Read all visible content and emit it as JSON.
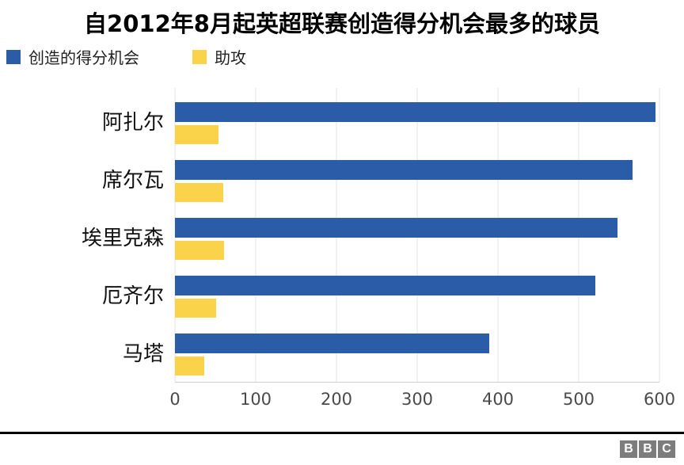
{
  "chart_data": {
    "type": "bar",
    "orientation": "horizontal",
    "title": "自2012年8月起英超联赛创造得分机会最多的球员",
    "categories": [
      "阿扎尔",
      "席尔瓦",
      "埃里克森",
      "厄齐尔",
      "马塔"
    ],
    "series": [
      {
        "name": "创造的得分机会",
        "color": "#2a5ca8",
        "values": [
          595,
          567,
          548,
          521,
          389
        ]
      },
      {
        "name": "助攻",
        "color": "#fbd34b",
        "values": [
          54,
          60,
          61,
          51,
          36
        ]
      }
    ],
    "xlabel": "",
    "ylabel": "",
    "xlim": [
      0,
      600
    ],
    "x_ticks": [
      0,
      100,
      200,
      300,
      400,
      500,
      600
    ],
    "grid": true,
    "legend_position": "top-left"
  },
  "footer": {
    "logo_blocks": [
      "B",
      "B",
      "C"
    ],
    "logo_color": "#7d7d7d"
  }
}
